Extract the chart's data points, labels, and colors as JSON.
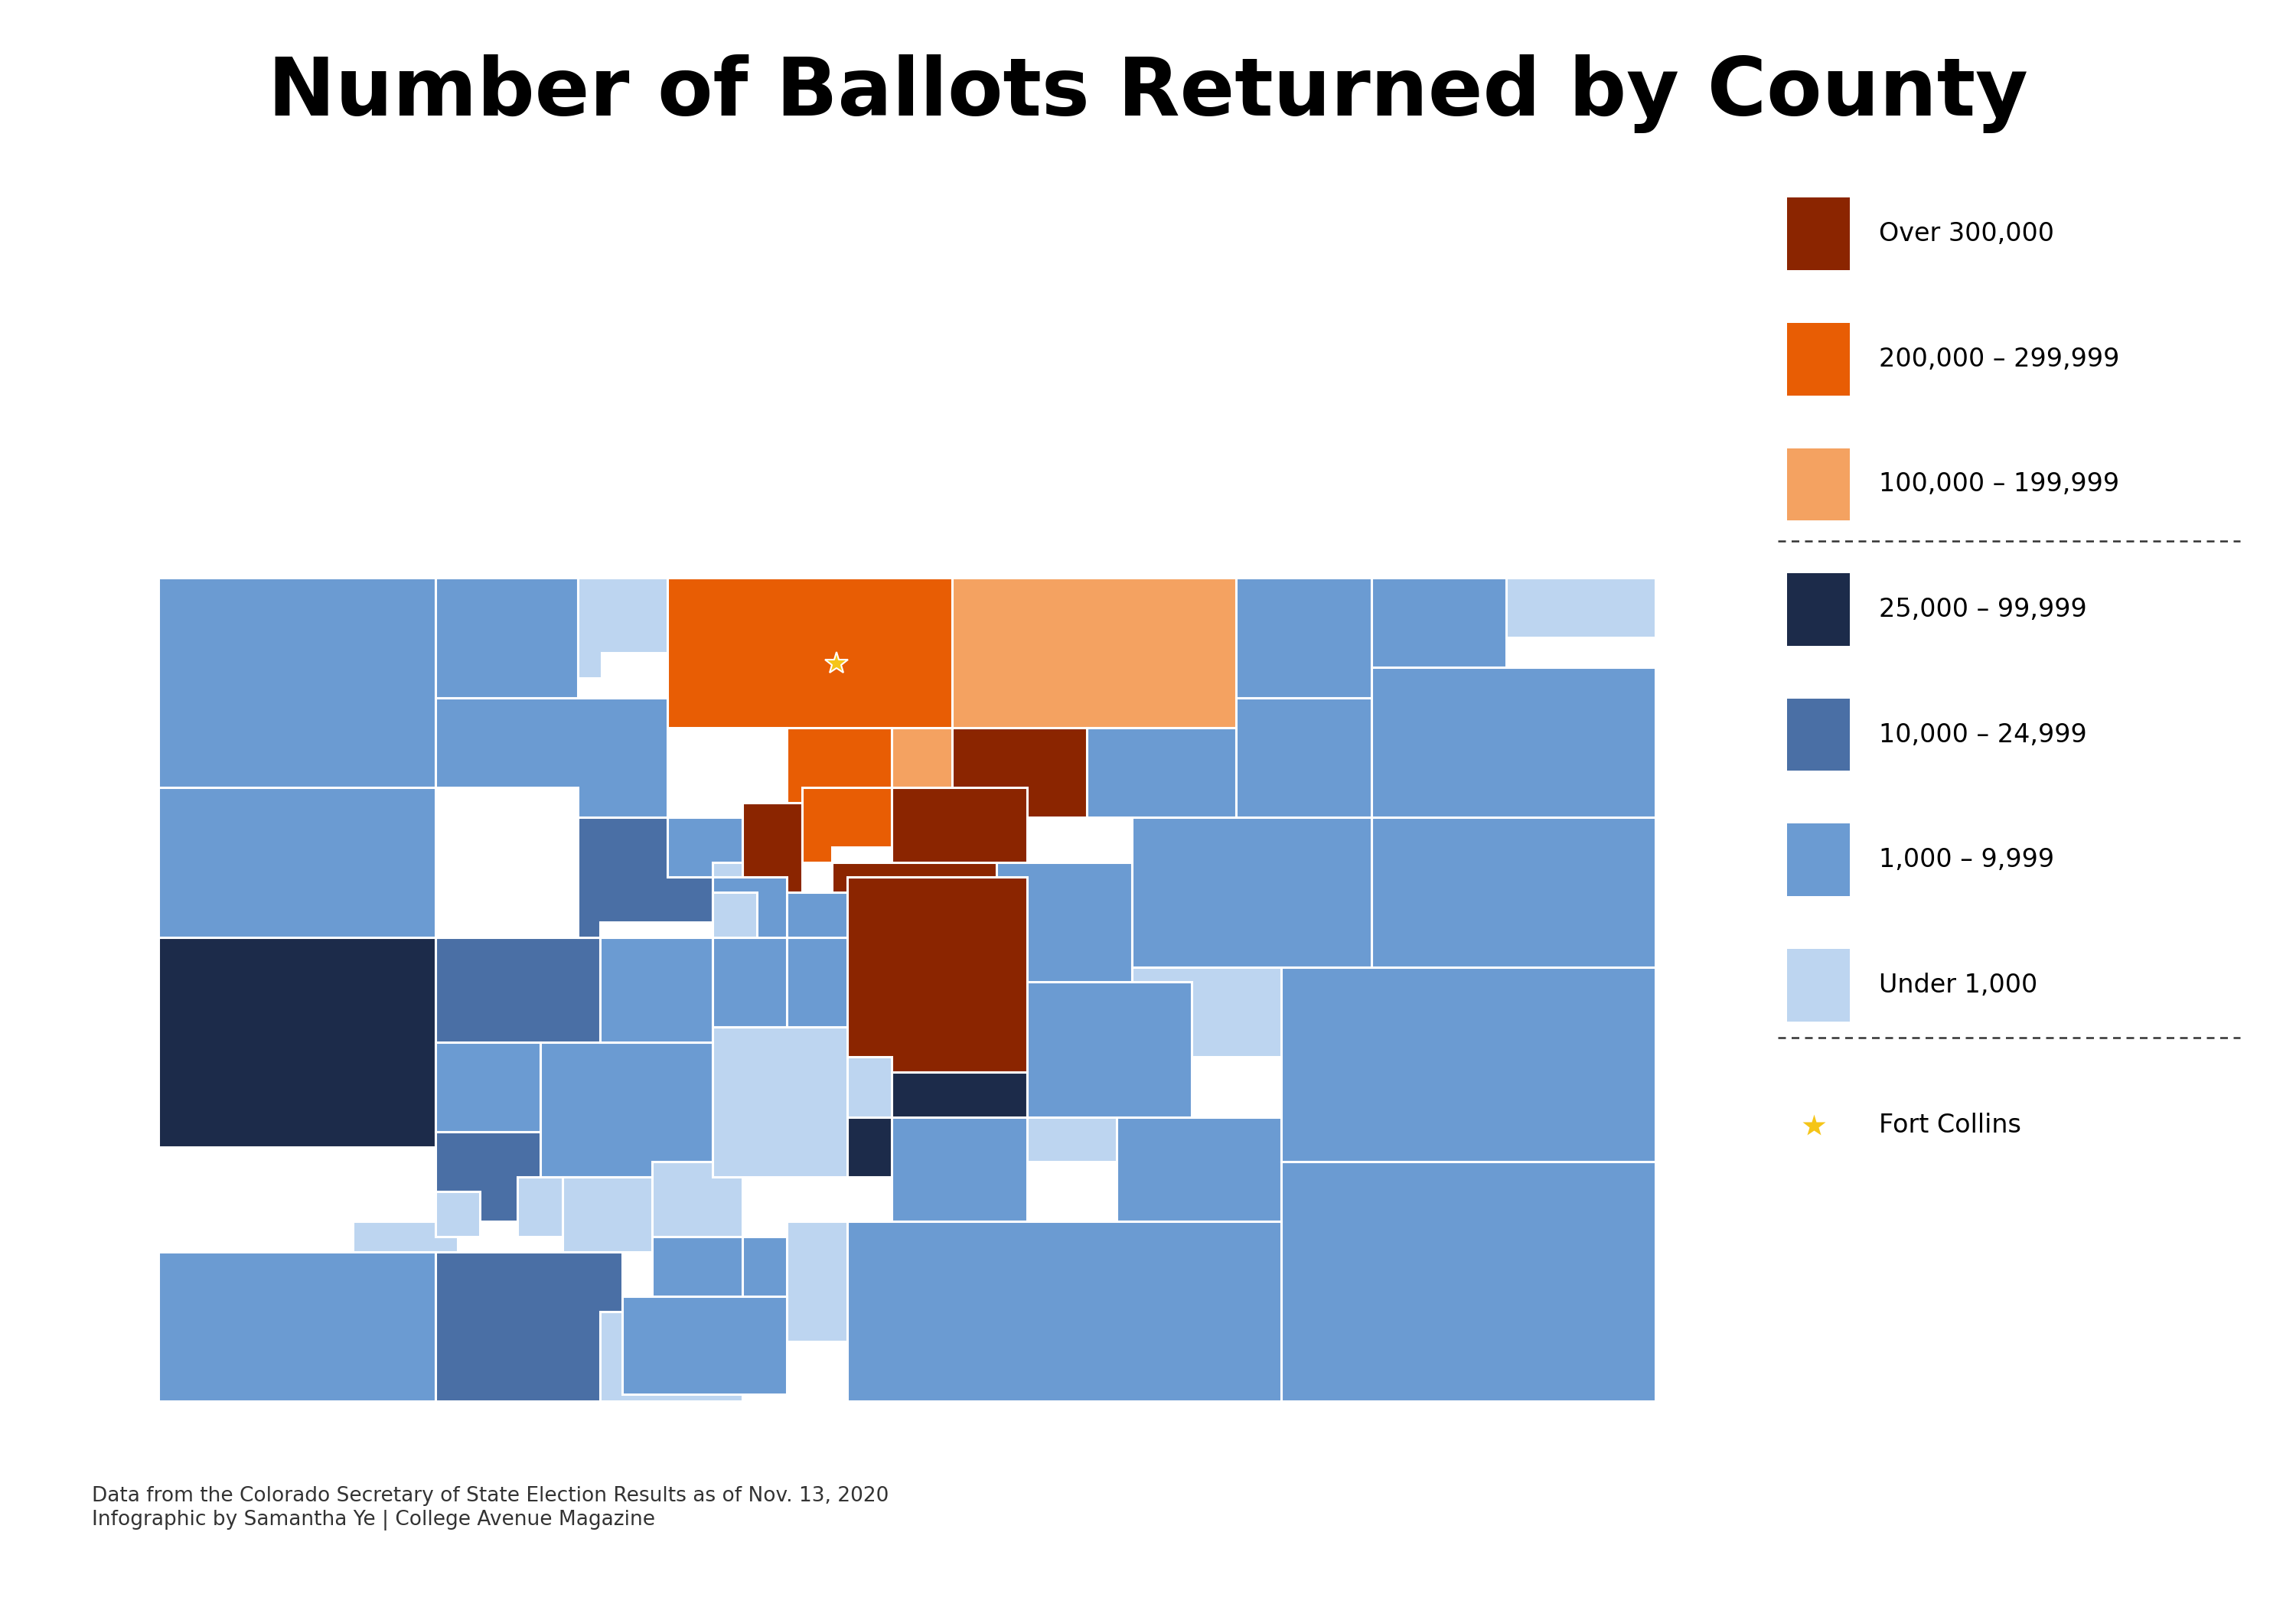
{
  "title": "Number of Ballots Returned by County",
  "subtitle_data": "Data from the Colorado Secretary of State Election Results as of Nov. 13, 2020\nInfographic by Samantha Ye | College Avenue Magazine",
  "background_color": "#ffffff",
  "title_fontsize": 76,
  "legend_items": [
    {
      "label": "Over 300,000",
      "color": "#8B2500"
    },
    {
      "label": "200,000 – 299,999",
      "color": "#E85D04"
    },
    {
      "label": "100,000 – 199,999",
      "color": "#F4A261"
    },
    {
      "label": "25,000 – 99,999",
      "color": "#1C2B4A"
    },
    {
      "label": "10,000 – 24,999",
      "color": "#4A6FA5"
    },
    {
      "label": "1,000 – 9,999",
      "color": "#6B9BD2"
    },
    {
      "label": "Under 1,000",
      "color": "#BDD5F0"
    }
  ],
  "fort_collins_star_color": "#F5C518",
  "county_colors": {
    "Moffat": "#6B9BD2",
    "Routt": "#6B9BD2",
    "Jackson": "#BDD5F0",
    "Larimer": "#E85D04",
    "Weld": "#F4A261",
    "Logan": "#6B9BD2",
    "Sedgwick": "#BDD5F0",
    "Phillips": "#6B9BD2",
    "Rio Blanco": "#6B9BD2",
    "Grand": "#6B9BD2",
    "Boulder": "#E85D04",
    "Broomfield": "#F4A261",
    "Adams": "#8B2500",
    "Arapahoe": "#8B2500",
    "Morgan": "#6B9BD2",
    "Washington": "#6B9BD2",
    "Yuma": "#6B9BD2",
    "Kit Carson": "#6B9BD2",
    "Garfield": "#4A6FA5",
    "Eagle": "#4A6FA5",
    "Gilpin": "#BDD5F0",
    "Clear Creek": "#6B9BD2",
    "Jefferson": "#8B2500",
    "Denver": "#E85D04",
    "Summit": "#6B9BD2",
    "Park": "#6B9BD2",
    "Douglas": "#8B2500",
    "Elbert": "#6B9BD2",
    "Lincoln": "#6B9BD2",
    "Cheyenne": "#BDD5F0",
    "Mesa": "#1C2B4A",
    "Pitkin": "#6B9BD2",
    "Lake": "#BDD5F0",
    "Chaffee": "#6B9BD2",
    "Teller": "#6B9BD2",
    "El Paso": "#8B2500",
    "Crowley": "#BDD5F0",
    "Otero": "#6B9BD2",
    "Bent": "#6B9BD2",
    "Prowers": "#6B9BD2",
    "Delta": "#6B9BD2",
    "Gunnison": "#6B9BD2",
    "Fremont": "#6B9BD2",
    "Pueblo": "#1C2B4A",
    "Huerfano": "#6B9BD2",
    "Baca": "#6B9BD2",
    "Montrose": "#4A6FA5",
    "Saguache": "#BDD5F0",
    "Custer": "#BDD5F0",
    "Las Animas": "#6B9BD2",
    "Ouray": "#BDD5F0",
    "Hinsdale": "#BDD5F0",
    "Mineral": "#BDD5F0",
    "Rio Grande": "#6B9BD2",
    "Alamosa": "#6B9BD2",
    "Costilla": "#BDD5F0",
    "San Miguel": "#BDD5F0",
    "Dolores": "#BDD5F0",
    "San Juan": "#BDD5F0",
    "Montezuma": "#6B9BD2",
    "La Plata": "#4A6FA5",
    "Archuleta": "#6B9BD2",
    "Conejos": "#BDD5F0"
  }
}
